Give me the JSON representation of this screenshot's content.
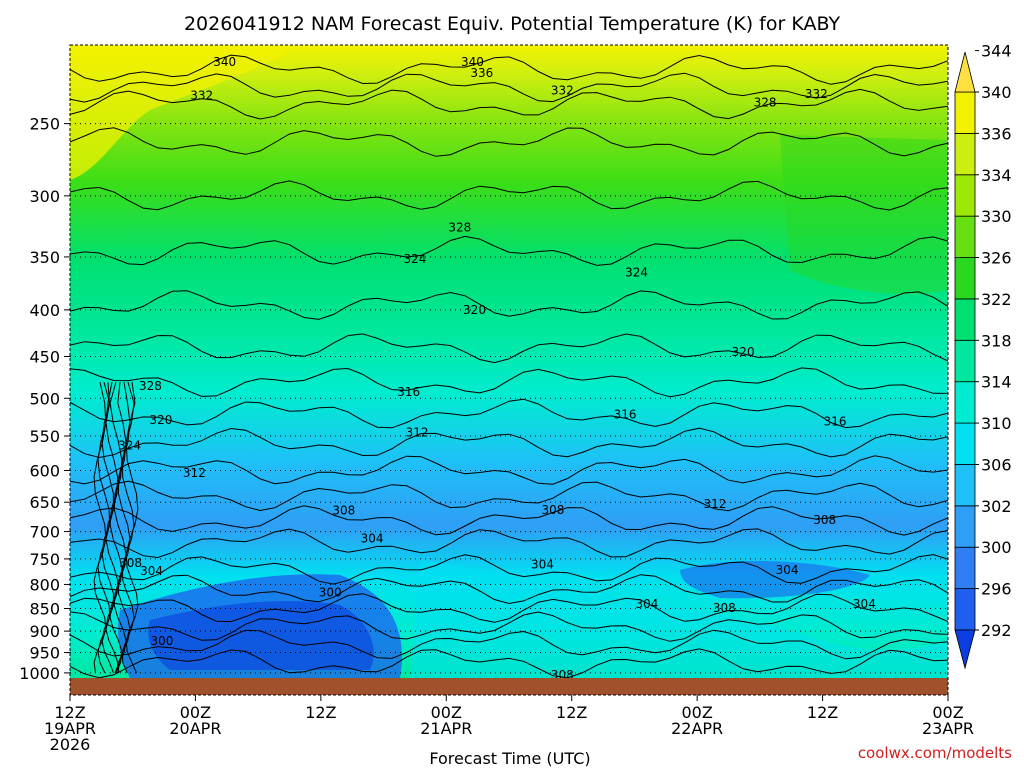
{
  "chart_data": {
    "type": "heatmap",
    "title": "2026041912 NAM Forecast Equiv. Potential Temperature (K) for KABY",
    "xlabel": "Forecast Time (UTC)",
    "ylabel": "",
    "credit": "coolwx.com/modelts",
    "x_ticks": [
      {
        "hour": 0,
        "l1": "12Z",
        "l2": "19APR",
        "l3": "2026"
      },
      {
        "hour": 12,
        "l1": "00Z",
        "l2": "20APR",
        "l3": ""
      },
      {
        "hour": 24,
        "l1": "12Z",
        "l2": "",
        "l3": ""
      },
      {
        "hour": 36,
        "l1": "00Z",
        "l2": "21APR",
        "l3": ""
      },
      {
        "hour": 48,
        "l1": "12Z",
        "l2": "",
        "l3": ""
      },
      {
        "hour": 60,
        "l1": "00Z",
        "l2": "22APR",
        "l3": ""
      },
      {
        "hour": 72,
        "l1": "12Z",
        "l2": "",
        "l3": ""
      },
      {
        "hour": 84,
        "l1": "00Z",
        "l2": "23APR",
        "l3": ""
      }
    ],
    "xlim": [
      0,
      84
    ],
    "y_ticks": [
      250,
      300,
      350,
      400,
      450,
      500,
      550,
      600,
      650,
      700,
      750,
      800,
      850,
      900,
      950,
      1000
    ],
    "ylim": [
      1013,
      205
    ],
    "yscale": "log",
    "colorbar": {
      "levels": [
        292,
        296,
        300,
        302,
        306,
        310,
        314,
        318,
        322,
        326,
        330,
        334,
        336,
        340,
        344
      ],
      "colors": [
        "#0a3ee0",
        "#1f5fef",
        "#2f7ef3",
        "#2f9ef5",
        "#1fc0f8",
        "#00e0f0",
        "#00ecd0",
        "#00e8a0",
        "#00e070",
        "#2ad820",
        "#66e010",
        "#9ee808",
        "#ccee10",
        "#f2f200",
        "#ffe040"
      ]
    },
    "contour_labels": [
      {
        "text": "340",
        "hour": 14.8,
        "p": 214
      },
      {
        "text": "340",
        "hour": 38.5,
        "p": 214
      },
      {
        "text": "336",
        "hour": 39.4,
        "p": 220
      },
      {
        "text": "332",
        "hour": 12.6,
        "p": 233
      },
      {
        "text": "332",
        "hour": 47.1,
        "p": 230
      },
      {
        "text": "328",
        "hour": 66.5,
        "p": 237
      },
      {
        "text": "332",
        "hour": 71.4,
        "p": 232
      },
      {
        "text": "328",
        "hour": 37.3,
        "p": 325
      },
      {
        "text": "324",
        "hour": 33.0,
        "p": 352
      },
      {
        "text": "324",
        "hour": 54.2,
        "p": 364
      },
      {
        "text": "320",
        "hour": 38.7,
        "p": 400
      },
      {
        "text": "320",
        "hour": 64.4,
        "p": 445
      },
      {
        "text": "328",
        "hour": 7.7,
        "p": 485
      },
      {
        "text": "316",
        "hour": 32.4,
        "p": 492
      },
      {
        "text": "320",
        "hour": 8.7,
        "p": 528
      },
      {
        "text": "316",
        "hour": 53.1,
        "p": 521
      },
      {
        "text": "316",
        "hour": 73.2,
        "p": 530
      },
      {
        "text": "312",
        "hour": 33.2,
        "p": 545
      },
      {
        "text": "324",
        "hour": 5.7,
        "p": 563
      },
      {
        "text": "312",
        "hour": 11.9,
        "p": 604
      },
      {
        "text": "308",
        "hour": 26.2,
        "p": 664
      },
      {
        "text": "308",
        "hour": 46.2,
        "p": 663
      },
      {
        "text": "312",
        "hour": 61.7,
        "p": 653
      },
      {
        "text": "308",
        "hour": 72.2,
        "p": 680
      },
      {
        "text": "304",
        "hour": 28.9,
        "p": 712
      },
      {
        "text": "308",
        "hour": 5.8,
        "p": 758
      },
      {
        "text": "304",
        "hour": 7.8,
        "p": 773
      },
      {
        "text": "300",
        "hour": 24.9,
        "p": 816
      },
      {
        "text": "304",
        "hour": 45.2,
        "p": 761
      },
      {
        "text": "304",
        "hour": 68.6,
        "p": 771
      },
      {
        "text": "304",
        "hour": 55.2,
        "p": 840
      },
      {
        "text": "308",
        "hour": 62.6,
        "p": 849
      },
      {
        "text": "304",
        "hour": 76.0,
        "p": 840
      },
      {
        "text": "300",
        "hour": 8.8,
        "p": 923
      },
      {
        "text": "308",
        "hour": 47.1,
        "p": 1005
      }
    ]
  }
}
